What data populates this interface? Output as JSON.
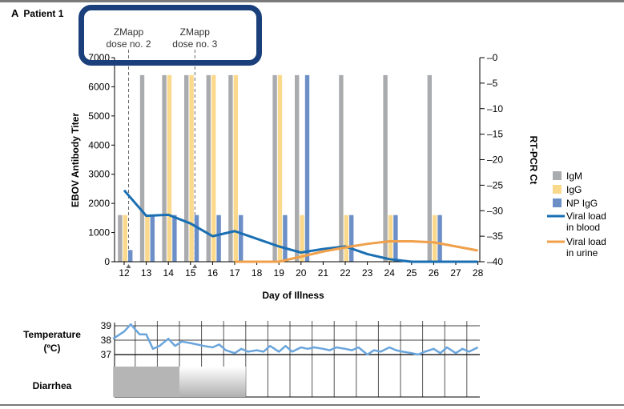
{
  "panel": {
    "letter": "A",
    "title": "Patient 1"
  },
  "doses": [
    {
      "line1": "ZMapp",
      "line2": "dose no. 2",
      "day": 12.2
    },
    {
      "line1": "ZMapp",
      "line2": "dose no. 3",
      "day": 15.2
    }
  ],
  "chart_data": {
    "type": "bar",
    "xlabel": "Day of Illness",
    "ylabel": "EBOV Antibody Titer",
    "y2label": "RT-PCR Ct",
    "x_ticks": [
      12,
      13,
      14,
      15,
      16,
      17,
      18,
      19,
      20,
      21,
      22,
      23,
      24,
      25,
      26,
      27,
      28
    ],
    "y_ticks": [
      0,
      1000,
      2000,
      3000,
      4000,
      5000,
      6000,
      7000
    ],
    "y2_ticks": [
      0,
      5,
      10,
      15,
      20,
      25,
      30,
      35,
      40
    ],
    "ylim": [
      0,
      7000
    ],
    "y2lim": [
      0,
      40
    ],
    "y2_inverted": true,
    "legend_position": "right",
    "bar_series": [
      {
        "name": "IgM",
        "color": "#a9abae",
        "points": [
          [
            12,
            1600
          ],
          [
            13,
            6400
          ],
          [
            14,
            6400
          ],
          [
            15,
            6400
          ],
          [
            16,
            6400
          ],
          [
            17,
            6400
          ],
          [
            19,
            6400
          ],
          [
            20,
            6400
          ],
          [
            22,
            6400
          ],
          [
            24,
            6400
          ],
          [
            26,
            6400
          ]
        ]
      },
      {
        "name": "IgG",
        "color": "#fbd98c",
        "points": [
          [
            12,
            1600
          ],
          [
            13,
            1600
          ],
          [
            14,
            6400
          ],
          [
            15,
            6400
          ],
          [
            16,
            6400
          ],
          [
            17,
            6400
          ],
          [
            19,
            6400
          ],
          [
            20,
            1600
          ],
          [
            22,
            1600
          ],
          [
            24,
            1600
          ],
          [
            26,
            1600
          ]
        ]
      },
      {
        "name": "NP IgG",
        "color": "#6b8fc6",
        "points": [
          [
            12,
            400
          ],
          [
            13,
            1600
          ],
          [
            14,
            1600
          ],
          [
            15,
            1600
          ],
          [
            16,
            1600
          ],
          [
            17,
            1600
          ],
          [
            19,
            1600
          ],
          [
            20,
            6400
          ],
          [
            22,
            1600
          ],
          [
            24,
            1600
          ],
          [
            26,
            1600
          ]
        ]
      }
    ],
    "line_series": [
      {
        "name": "Viral load in blood",
        "color": "#1a6fb3",
        "axis": "y2",
        "points": [
          [
            12,
            26
          ],
          [
            13,
            31
          ],
          [
            14,
            30.8
          ],
          [
            15,
            32.5
          ],
          [
            16,
            35
          ],
          [
            17,
            34
          ],
          [
            18,
            35.5
          ],
          [
            19,
            37
          ],
          [
            20,
            38.2
          ],
          [
            21,
            37.5
          ],
          [
            22,
            37
          ],
          [
            23,
            38.5
          ],
          [
            24,
            39.5
          ],
          [
            25,
            40
          ],
          [
            26,
            40
          ],
          [
            27,
            40
          ],
          [
            28,
            40
          ]
        ]
      },
      {
        "name": "Viral load in urine",
        "color": "#f0a04b",
        "axis": "y2",
        "points": [
          [
            17,
            40
          ],
          [
            18,
            40
          ],
          [
            19,
            40
          ],
          [
            20,
            39
          ],
          [
            21,
            38
          ],
          [
            22,
            37.2
          ],
          [
            23,
            36.5
          ],
          [
            24,
            36
          ],
          [
            25,
            36
          ],
          [
            26,
            36.2
          ],
          [
            27,
            37
          ],
          [
            28,
            37.8
          ]
        ]
      }
    ],
    "legend": [
      {
        "label": "IgM",
        "kind": "box",
        "color": "#a9abae"
      },
      {
        "label": "IgG",
        "kind": "box",
        "color": "#fbd98c"
      },
      {
        "label": "NP IgG",
        "kind": "box",
        "color": "#6b8fc6"
      },
      {
        "label": "Viral load",
        "label2": "in blood",
        "kind": "line",
        "color": "#1a6fb3"
      },
      {
        "label": "Viral load",
        "label2": "in urine",
        "kind": "line",
        "color": "#f0a04b"
      }
    ]
  },
  "temperature": {
    "label1": "Temperature",
    "label2": "(ºC)",
    "ticks": [
      37,
      38,
      39
    ],
    "color": "#6aa5dc",
    "points": [
      [
        11.5,
        38.1
      ],
      [
        12,
        38.6
      ],
      [
        12.3,
        39.1
      ],
      [
        12.7,
        38.4
      ],
      [
        13,
        38.4
      ],
      [
        13.3,
        37.4
      ],
      [
        13.6,
        37.6
      ],
      [
        14,
        38.1
      ],
      [
        14.3,
        37.6
      ],
      [
        14.6,
        37.9
      ],
      [
        15,
        37.8
      ],
      [
        15.3,
        37.7
      ],
      [
        15.6,
        37.6
      ],
      [
        16,
        37.5
      ],
      [
        16.3,
        37.7
      ],
      [
        16.6,
        37.3
      ],
      [
        17,
        37.1
      ],
      [
        17.3,
        37.4
      ],
      [
        17.6,
        37.2
      ],
      [
        18,
        37.3
      ],
      [
        18.3,
        37.2
      ],
      [
        18.6,
        37.6
      ],
      [
        19,
        37.2
      ],
      [
        19.3,
        37.6
      ],
      [
        19.6,
        37.2
      ],
      [
        20,
        37.5
      ],
      [
        20.3,
        37.4
      ],
      [
        20.6,
        37.5
      ],
      [
        21,
        37.4
      ],
      [
        21.3,
        37.3
      ],
      [
        21.6,
        37.5
      ],
      [
        22,
        37.4
      ],
      [
        22.3,
        37.3
      ],
      [
        22.6,
        37.5
      ],
      [
        23,
        37.0
      ],
      [
        23.3,
        37.3
      ],
      [
        23.6,
        37.2
      ],
      [
        24,
        37.5
      ],
      [
        24.3,
        37.3
      ],
      [
        24.6,
        37.2
      ],
      [
        25,
        37.1
      ],
      [
        25.3,
        37.0
      ],
      [
        25.6,
        37.2
      ],
      [
        26,
        37.4
      ],
      [
        26.3,
        37.1
      ],
      [
        26.6,
        37.5
      ],
      [
        27,
        37.1
      ],
      [
        27.3,
        37.4
      ],
      [
        27.6,
        37.2
      ],
      [
        28,
        37.5
      ]
    ]
  },
  "diarrhea": {
    "label": "Diarrhea",
    "solid_days": [
      11.5,
      14.5
    ],
    "fade_days": [
      14.5,
      17.5
    ]
  }
}
